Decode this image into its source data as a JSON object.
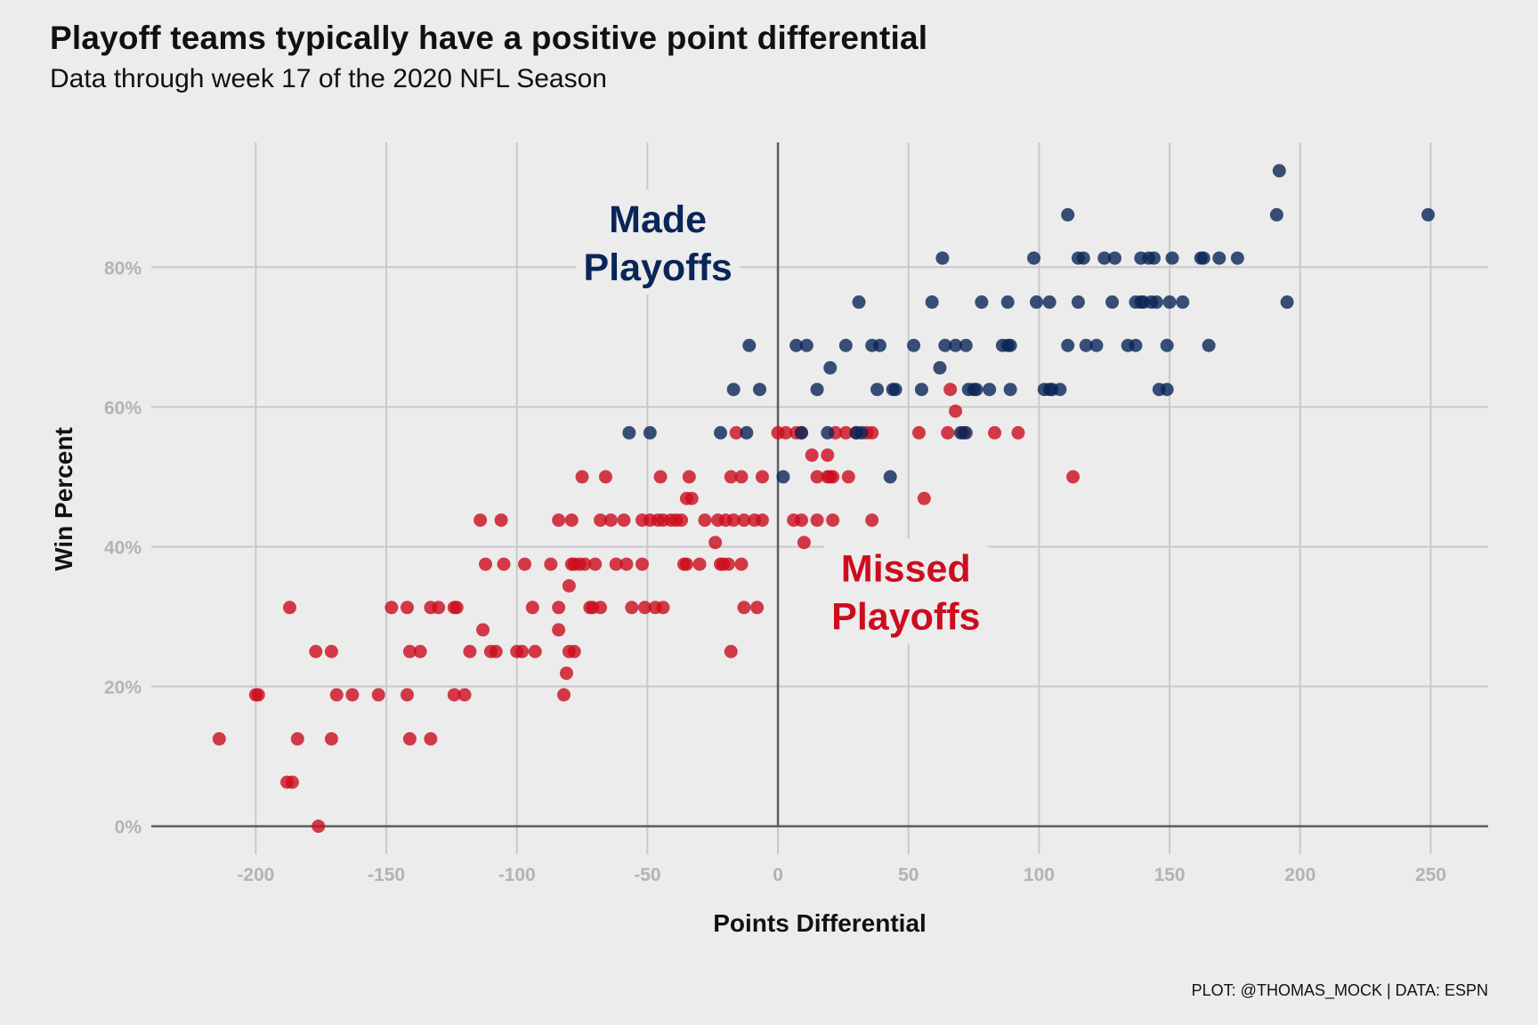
{
  "title": "Playoff teams typically have a positive point differential",
  "subtitle": "Data through week 17 of the 2020 NFL Season",
  "caption": "PLOT: @THOMAS_MOCK | DATA: ESPN",
  "colors": {
    "background": "#ececec",
    "grid": "#c9c9c9",
    "zero_line": "#5e5e5e",
    "tick_text": "#b3b3b3",
    "made_playoffs": "#0a2557",
    "missed_playoffs": "#cc0d1e"
  },
  "chart_data": {
    "type": "scatter",
    "xlabel": "Points Differential",
    "ylabel": "Win Percent",
    "xlim": [
      -240,
      272
    ],
    "ylim": [
      -0.04,
      0.985
    ],
    "x_ticks": [
      -200,
      -150,
      -100,
      -50,
      0,
      50,
      100,
      150,
      200,
      250
    ],
    "x_tick_labels": [
      "-200",
      "-150",
      "-100",
      "-50",
      "0",
      "50",
      "100",
      "150",
      "200",
      "250"
    ],
    "y_ticks": [
      0,
      0.2,
      0.4,
      0.6,
      0.8
    ],
    "y_tick_labels": [
      "0%",
      "20%",
      "40%",
      "60%",
      "80%"
    ],
    "grid": true,
    "legend": "none",
    "annotations": [
      {
        "lines": [
          "Made",
          "Playoffs"
        ],
        "x": -46,
        "y": 0.835,
        "group": "made_playoffs"
      },
      {
        "lines": [
          "Missed",
          "Playoffs"
        ],
        "x": 49,
        "y": 0.335,
        "group": "missed_playoffs"
      }
    ],
    "series": [
      {
        "group": "made_playoffs",
        "points": [
          [
            192,
            0.938
          ],
          [
            191,
            0.875
          ],
          [
            249,
            0.875
          ],
          [
            111,
            0.875
          ],
          [
            63,
            0.813
          ],
          [
            98,
            0.813
          ],
          [
            115,
            0.813
          ],
          [
            117,
            0.813
          ],
          [
            125,
            0.813
          ],
          [
            129,
            0.813
          ],
          [
            139,
            0.813
          ],
          [
            142,
            0.813
          ],
          [
            144,
            0.813
          ],
          [
            151,
            0.813
          ],
          [
            162,
            0.813
          ],
          [
            163,
            0.813
          ],
          [
            169,
            0.813
          ],
          [
            176,
            0.813
          ],
          [
            31,
            0.75
          ],
          [
            59,
            0.75
          ],
          [
            78,
            0.75
          ],
          [
            88,
            0.75
          ],
          [
            99,
            0.75
          ],
          [
            104,
            0.75
          ],
          [
            115,
            0.75
          ],
          [
            128,
            0.75
          ],
          [
            137,
            0.75
          ],
          [
            139,
            0.75
          ],
          [
            140,
            0.75
          ],
          [
            143,
            0.75
          ],
          [
            145,
            0.75
          ],
          [
            150,
            0.75
          ],
          [
            155,
            0.75
          ],
          [
            195,
            0.75
          ],
          [
            -11,
            0.688
          ],
          [
            7,
            0.688
          ],
          [
            11,
            0.688
          ],
          [
            26,
            0.688
          ],
          [
            36,
            0.688
          ],
          [
            39,
            0.688
          ],
          [
            52,
            0.688
          ],
          [
            64,
            0.688
          ],
          [
            68,
            0.688
          ],
          [
            72,
            0.688
          ],
          [
            86,
            0.688
          ],
          [
            88,
            0.688
          ],
          [
            89,
            0.688
          ],
          [
            111,
            0.688
          ],
          [
            118,
            0.688
          ],
          [
            122,
            0.688
          ],
          [
            134,
            0.688
          ],
          [
            137,
            0.688
          ],
          [
            149,
            0.688
          ],
          [
            165,
            0.688
          ],
          [
            20,
            0.656
          ],
          [
            62,
            0.656
          ],
          [
            -17,
            0.625
          ],
          [
            -7,
            0.625
          ],
          [
            15,
            0.625
          ],
          [
            38,
            0.625
          ],
          [
            44,
            0.625
          ],
          [
            45,
            0.625
          ],
          [
            55,
            0.625
          ],
          [
            73,
            0.625
          ],
          [
            75,
            0.625
          ],
          [
            76,
            0.625
          ],
          [
            81,
            0.625
          ],
          [
            89,
            0.625
          ],
          [
            102,
            0.625
          ],
          [
            104,
            0.625
          ],
          [
            105,
            0.625
          ],
          [
            108,
            0.625
          ],
          [
            146,
            0.625
          ],
          [
            149,
            0.625
          ],
          [
            -57,
            0.563
          ],
          [
            -49,
            0.563
          ],
          [
            -22,
            0.563
          ],
          [
            -12,
            0.563
          ],
          [
            9,
            0.563
          ],
          [
            19,
            0.563
          ],
          [
            30,
            0.563
          ],
          [
            32,
            0.563
          ],
          [
            70,
            0.563
          ],
          [
            72,
            0.563
          ],
          [
            2,
            0.5
          ],
          [
            43,
            0.5
          ]
        ]
      },
      {
        "group": "missed_playoffs",
        "points": [
          [
            66,
            0.625
          ],
          [
            68,
            0.594
          ],
          [
            0,
            0.563
          ],
          [
            3,
            0.563
          ],
          [
            7,
            0.563
          ],
          [
            9,
            0.563
          ],
          [
            -16,
            0.563
          ],
          [
            22,
            0.563
          ],
          [
            26,
            0.563
          ],
          [
            30,
            0.563
          ],
          [
            34,
            0.563
          ],
          [
            36,
            0.563
          ],
          [
            54,
            0.563
          ],
          [
            65,
            0.563
          ],
          [
            71,
            0.563
          ],
          [
            83,
            0.563
          ],
          [
            92,
            0.563
          ],
          [
            13,
            0.531
          ],
          [
            19,
            0.531
          ],
          [
            -75,
            0.5
          ],
          [
            -66,
            0.5
          ],
          [
            -45,
            0.5
          ],
          [
            -34,
            0.5
          ],
          [
            -18,
            0.5
          ],
          [
            -14,
            0.5
          ],
          [
            -6,
            0.5
          ],
          [
            15,
            0.5
          ],
          [
            19,
            0.5
          ],
          [
            20,
            0.5
          ],
          [
            21,
            0.5
          ],
          [
            27,
            0.5
          ],
          [
            113,
            0.5
          ],
          [
            -35,
            0.469
          ],
          [
            -33,
            0.469
          ],
          [
            56,
            0.469
          ],
          [
            -114,
            0.438
          ],
          [
            -106,
            0.438
          ],
          [
            -84,
            0.438
          ],
          [
            -79,
            0.438
          ],
          [
            -68,
            0.438
          ],
          [
            -64,
            0.438
          ],
          [
            -59,
            0.438
          ],
          [
            -52,
            0.438
          ],
          [
            -49,
            0.438
          ],
          [
            -46,
            0.438
          ],
          [
            -44,
            0.438
          ],
          [
            -41,
            0.438
          ],
          [
            -39,
            0.438
          ],
          [
            -37,
            0.438
          ],
          [
            -28,
            0.438
          ],
          [
            -23,
            0.438
          ],
          [
            -20,
            0.438
          ],
          [
            -17,
            0.438
          ],
          [
            -13,
            0.438
          ],
          [
            -9,
            0.438
          ],
          [
            -6,
            0.438
          ],
          [
            6,
            0.438
          ],
          [
            9,
            0.438
          ],
          [
            15,
            0.438
          ],
          [
            21,
            0.438
          ],
          [
            36,
            0.438
          ],
          [
            -24,
            0.406
          ],
          [
            10,
            0.406
          ],
          [
            -112,
            0.375
          ],
          [
            -105,
            0.375
          ],
          [
            -97,
            0.375
          ],
          [
            -87,
            0.375
          ],
          [
            -79,
            0.375
          ],
          [
            -78,
            0.375
          ],
          [
            -76,
            0.375
          ],
          [
            -74,
            0.375
          ],
          [
            -70,
            0.375
          ],
          [
            -62,
            0.375
          ],
          [
            -58,
            0.375
          ],
          [
            -52,
            0.375
          ],
          [
            -36,
            0.375
          ],
          [
            -35,
            0.375
          ],
          [
            -30,
            0.375
          ],
          [
            -22,
            0.375
          ],
          [
            -21,
            0.375
          ],
          [
            -19,
            0.375
          ],
          [
            -14,
            0.375
          ],
          [
            -80,
            0.344
          ],
          [
            -148,
            0.313
          ],
          [
            -142,
            0.313
          ],
          [
            -133,
            0.313
          ],
          [
            -130,
            0.313
          ],
          [
            -124,
            0.313
          ],
          [
            -123,
            0.313
          ],
          [
            -94,
            0.313
          ],
          [
            -84,
            0.313
          ],
          [
            -72,
            0.313
          ],
          [
            -71,
            0.313
          ],
          [
            -68,
            0.313
          ],
          [
            -56,
            0.313
          ],
          [
            -51,
            0.313
          ],
          [
            -47,
            0.313
          ],
          [
            -44,
            0.313
          ],
          [
            -13,
            0.313
          ],
          [
            -8,
            0.313
          ],
          [
            -187,
            0.313
          ],
          [
            -113,
            0.281
          ],
          [
            -84,
            0.281
          ],
          [
            -177,
            0.25
          ],
          [
            -171,
            0.25
          ],
          [
            -141,
            0.25
          ],
          [
            -137,
            0.25
          ],
          [
            -118,
            0.25
          ],
          [
            -110,
            0.25
          ],
          [
            -108,
            0.25
          ],
          [
            -100,
            0.25
          ],
          [
            -98,
            0.25
          ],
          [
            -93,
            0.25
          ],
          [
            -80,
            0.25
          ],
          [
            -78,
            0.25
          ],
          [
            -18,
            0.25
          ],
          [
            -81,
            0.219
          ],
          [
            -200,
            0.188
          ],
          [
            -199,
            0.188
          ],
          [
            -169,
            0.188
          ],
          [
            -163,
            0.188
          ],
          [
            -153,
            0.188
          ],
          [
            -142,
            0.188
          ],
          [
            -124,
            0.188
          ],
          [
            -120,
            0.188
          ],
          [
            -82,
            0.188
          ],
          [
            -214,
            0.125
          ],
          [
            -184,
            0.125
          ],
          [
            -171,
            0.125
          ],
          [
            -141,
            0.125
          ],
          [
            -133,
            0.125
          ],
          [
            -188,
            0.063
          ],
          [
            -186,
            0.063
          ],
          [
            -176,
            0.0
          ]
        ]
      }
    ]
  }
}
